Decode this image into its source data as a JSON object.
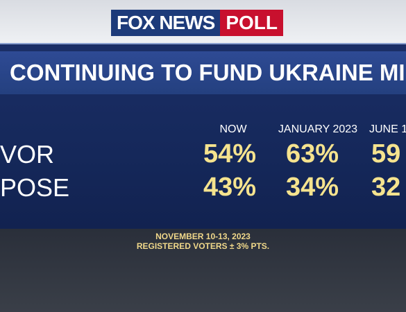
{
  "header": {
    "logo": "FOX NEWS",
    "logo_tag": "POLL"
  },
  "title": "CONTINUING TO FUND UKRAINE MILITA",
  "table": {
    "columns": [
      "NOW",
      "JANUARY 2023",
      "JUNE 1"
    ],
    "rows": [
      {
        "label": "VOR",
        "values": [
          "54%",
          "63%",
          "59"
        ]
      },
      {
        "label": "POSE",
        "values": [
          "43%",
          "34%",
          "32"
        ]
      }
    ]
  },
  "footer": {
    "date": "NOVEMBER 10-13, 2023",
    "note": "REGISTERED VOTERS ± 3% PTS."
  }
}
